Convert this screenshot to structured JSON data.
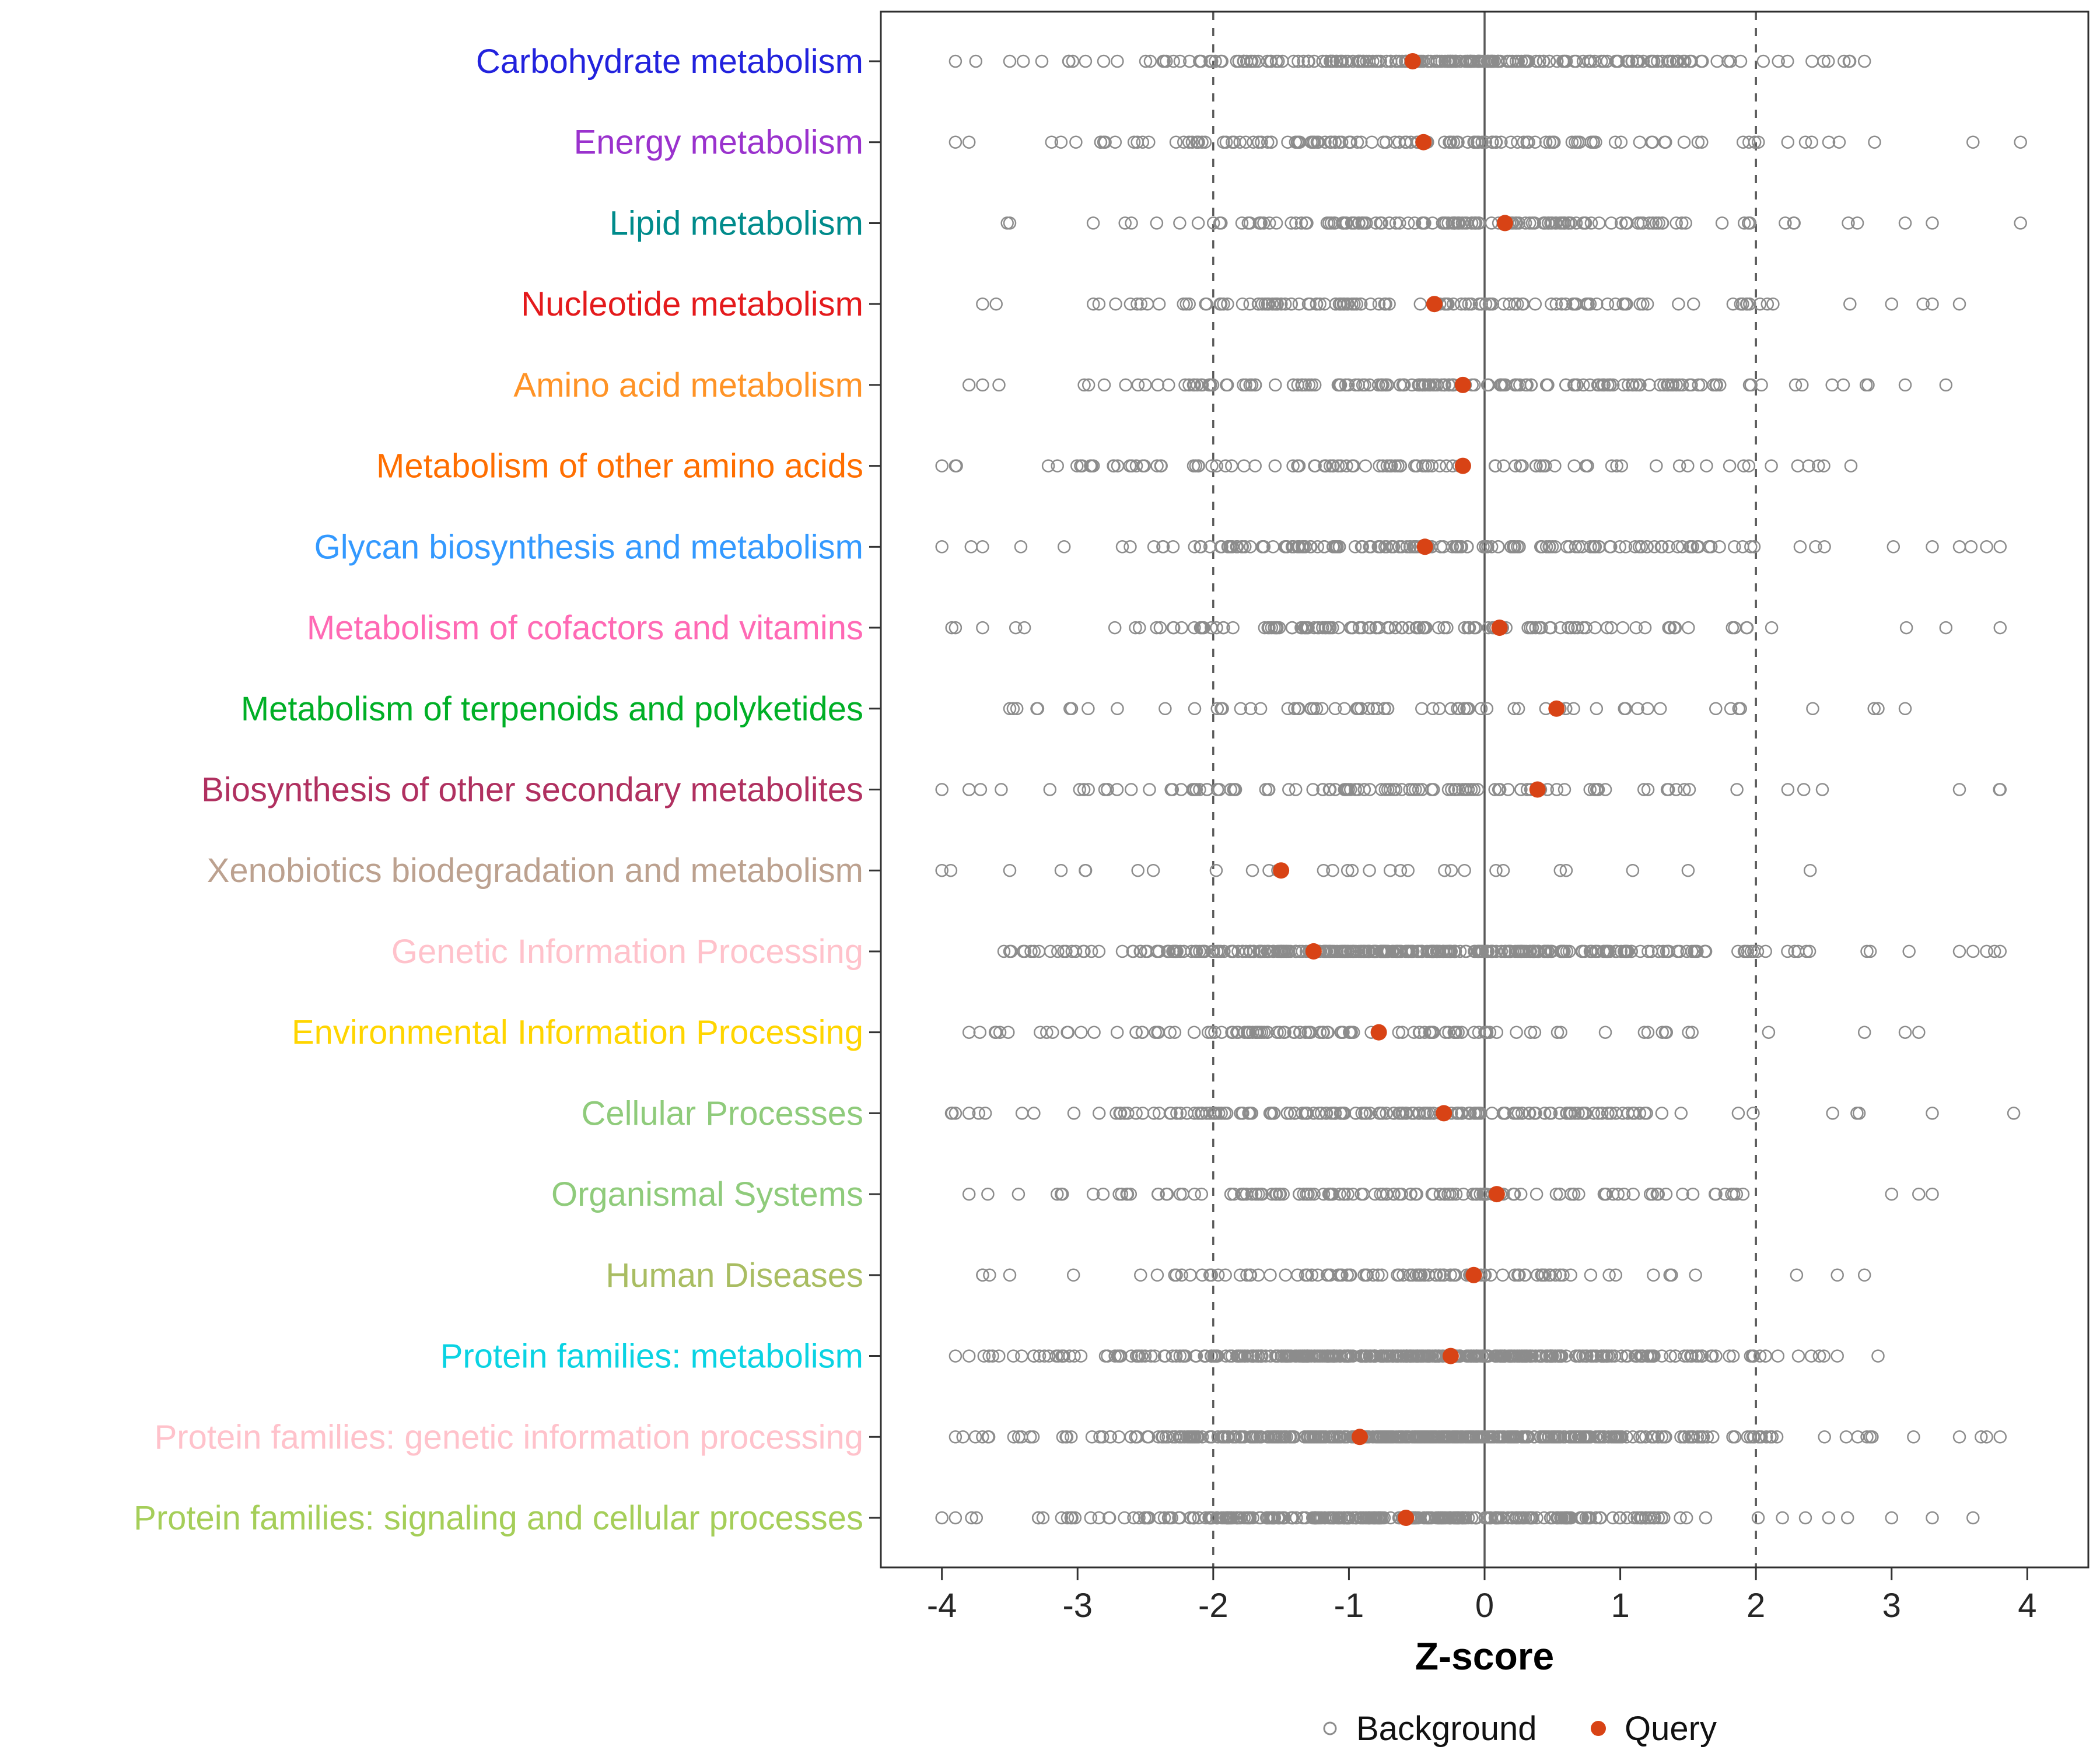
{
  "chart_data": {
    "type": "scatter",
    "title": "",
    "xlabel": "Z-score",
    "x_ticks": [
      -4,
      -3,
      -2,
      -1,
      0,
      1,
      2,
      3,
      4
    ],
    "xlim": [
      -4.45,
      4.45
    ],
    "grid": false,
    "reference_lines": {
      "solid": [
        0
      ],
      "dashed": [
        -2,
        2
      ]
    },
    "legend_position": "bottom",
    "legend": [
      {
        "label": "Background",
        "marker": "open-circle",
        "color": "#8C8C8C"
      },
      {
        "label": "Query",
        "marker": "filled-circle",
        "color": "#D84315"
      }
    ],
    "style": {
      "background_point_stroke": "#8C8C8C",
      "query_point_fill": "#D84315",
      "panel_border": "#2F2F2F",
      "ref_line_color": "#595959",
      "axis_text_color": "#262626"
    },
    "jitter_seed": 42,
    "rows": [
      {
        "label": "Carbohydrate metabolism",
        "color": "#2222DD",
        "query": -0.53,
        "background": {
          "n": 220,
          "mean": -0.3,
          "sd": 1.3,
          "min": -3.95,
          "max": 2.85,
          "extremes": [
            -3.9,
            -3.75,
            -3.5,
            -3.4,
            2.5,
            2.65,
            2.8
          ]
        }
      },
      {
        "label": "Energy metabolism",
        "color": "#9A32CD",
        "query": -0.45,
        "background": {
          "n": 130,
          "mean": -0.4,
          "sd": 1.4,
          "min": -3.95,
          "max": 4.0,
          "extremes": [
            -3.9,
            -3.8,
            3.6,
            3.95
          ]
        }
      },
      {
        "label": "Lipid metabolism",
        "color": "#008B8B",
        "query": 0.15,
        "background": {
          "n": 140,
          "mean": -0.2,
          "sd": 1.3,
          "min": -3.55,
          "max": 4.0,
          "extremes": [
            -3.5,
            3.1,
            3.3,
            3.95
          ]
        }
      },
      {
        "label": "Nucleotide metabolism",
        "color": "#E41A1C",
        "query": -0.37,
        "background": {
          "n": 120,
          "mean": -0.5,
          "sd": 1.5,
          "min": -3.75,
          "max": 3.55,
          "extremes": [
            -3.7,
            -3.6,
            3.0,
            3.3,
            3.5
          ]
        }
      },
      {
        "label": "Amino acid metabolism",
        "color": "#FF9326",
        "query": -0.16,
        "background": {
          "n": 160,
          "mean": -0.4,
          "sd": 1.4,
          "min": -3.85,
          "max": 3.45,
          "extremes": [
            -3.8,
            -3.7,
            3.1,
            3.4
          ]
        }
      },
      {
        "label": "Metabolism of other amino acids",
        "color": "#FF6E00",
        "query": -0.16,
        "background": {
          "n": 100,
          "mean": -0.8,
          "sd": 1.5,
          "min": -4.05,
          "max": 2.75,
          "extremes": [
            -4.0,
            -3.9,
            2.5,
            2.7
          ]
        }
      },
      {
        "label": "Glycan biosynthesis and metabolism",
        "color": "#3399FF",
        "query": -0.44,
        "background": {
          "n": 170,
          "mean": -0.3,
          "sd": 1.4,
          "min": -4.05,
          "max": 3.85,
          "extremes": [
            -4.0,
            -3.7,
            3.3,
            3.5,
            3.7,
            3.8
          ]
        }
      },
      {
        "label": "Metabolism of cofactors and vitamins",
        "color": "#FF69B4",
        "query": 0.11,
        "background": {
          "n": 120,
          "mean": -0.6,
          "sd": 1.4,
          "min": -3.95,
          "max": 3.85,
          "extremes": [
            -3.9,
            -3.7,
            3.4,
            3.8
          ]
        }
      },
      {
        "label": "Metabolism of terpenoids and polyketides",
        "color": "#00AF26",
        "query": 0.53,
        "background": {
          "n": 70,
          "mean": -0.5,
          "sd": 1.5,
          "min": -3.55,
          "max": 3.15,
          "extremes": [
            -3.5,
            -3.3,
            2.9,
            3.1
          ]
        }
      },
      {
        "label": "Biosynthesis of other secondary metabolites",
        "color": "#B03060",
        "query": 0.39,
        "background": {
          "n": 110,
          "mean": -0.7,
          "sd": 1.4,
          "min": -4.05,
          "max": 3.85,
          "extremes": [
            -4.0,
            -3.8,
            3.5,
            3.8
          ]
        }
      },
      {
        "label": "Xenobiotics biodegradation and metabolism",
        "color": "#BCA18F",
        "query": -1.5,
        "background": {
          "n": 26,
          "mean": -1.2,
          "sd": 1.6,
          "min": -4.05,
          "max": 2.45,
          "extremes": [
            -4.0,
            -3.5,
            1.5,
            2.4
          ]
        }
      },
      {
        "label": "Genetic Information Processing",
        "color": "#FFC2CB",
        "query": -1.26,
        "background": {
          "n": 350,
          "mean": -0.5,
          "sd": 1.3,
          "min": -3.55,
          "max": 3.85,
          "extremes": [
            -3.5,
            -3.4,
            3.5,
            3.6,
            3.7,
            3.8
          ]
        }
      },
      {
        "label": "Environmental Information Processing",
        "color": "#FFD500",
        "query": -0.78,
        "background": {
          "n": 110,
          "mean": -1.0,
          "sd": 1.3,
          "min": -3.85,
          "max": 3.25,
          "extremes": [
            -3.8,
            -3.6,
            2.8,
            3.1,
            3.2
          ]
        }
      },
      {
        "label": "Cellular Processes",
        "color": "#8FCB7B",
        "query": -0.3,
        "background": {
          "n": 170,
          "mean": -0.8,
          "sd": 1.4,
          "min": -3.95,
          "max": 3.95,
          "extremes": [
            -3.9,
            -3.8,
            3.3,
            3.9
          ]
        }
      },
      {
        "label": "Organismal Systems",
        "color": "#8FCB7B",
        "query": 0.09,
        "background": {
          "n": 130,
          "mean": -0.7,
          "sd": 1.4,
          "min": -3.85,
          "max": 3.35,
          "extremes": [
            -3.8,
            3.0,
            3.2,
            3.3
          ]
        }
      },
      {
        "label": "Human Diseases",
        "color": "#A9BD62",
        "query": -0.08,
        "background": {
          "n": 100,
          "mean": -0.9,
          "sd": 1.3,
          "min": -3.75,
          "max": 2.85,
          "extremes": [
            -3.7,
            -3.5,
            2.3,
            2.6,
            2.8
          ]
        }
      },
      {
        "label": "Protein families: metabolism",
        "color": "#0AD3E3",
        "query": -0.25,
        "background": {
          "n": 420,
          "mean": -0.4,
          "sd": 1.3,
          "min": -3.95,
          "max": 2.95,
          "extremes": [
            -3.9,
            -3.8,
            2.6,
            2.9
          ]
        }
      },
      {
        "label": "Protein families: genetic information processing",
        "color": "#FFC2CB",
        "query": -0.92,
        "background": {
          "n": 460,
          "mean": -0.5,
          "sd": 1.3,
          "min": -3.95,
          "max": 3.85,
          "extremes": [
            -3.9,
            -3.7,
            3.5,
            3.7,
            3.8
          ]
        }
      },
      {
        "label": "Protein families: signaling and cellular processes",
        "color": "#A5CE59",
        "query": -0.58,
        "background": {
          "n": 320,
          "mean": -0.6,
          "sd": 1.3,
          "min": -4.05,
          "max": 3.65,
          "extremes": [
            -4.0,
            -3.9,
            3.0,
            3.3,
            3.6
          ]
        }
      }
    ]
  }
}
